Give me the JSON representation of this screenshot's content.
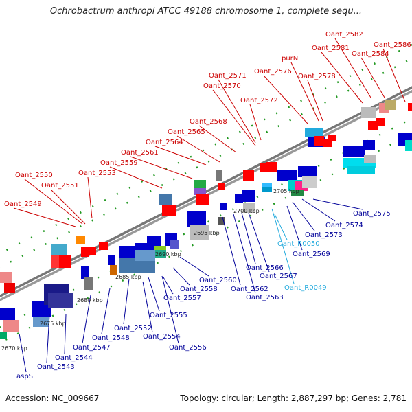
{
  "title": "Ochrobactrum anthropi ATCC 49188 chromosome 1, complete sequ...",
  "footer": {
    "accession": "Accession: NC_009667",
    "summary": "Topology: circular; Length: 2,887,297 bp; Genes: 2,781"
  },
  "colors": {
    "forward_label": "#cc0000",
    "reverse_label": "#000099",
    "rna_label": "#22aadd",
    "backbone": "#888888",
    "tick": "#228822"
  },
  "ticks": [
    {
      "label": "2670 kbp"
    },
    {
      "label": "2675 kbp"
    },
    {
      "label": "2680 kbp"
    },
    {
      "label": "2685 kbp"
    },
    {
      "label": "2690 kbp"
    },
    {
      "label": "2695 kbp"
    },
    {
      "label": "2700 kbp"
    },
    {
      "label": "2705 kbp"
    }
  ],
  "forward_genes": [
    {
      "name": "Oant_2549"
    },
    {
      "name": "Oant_2550"
    },
    {
      "name": "Oant_2551"
    },
    {
      "name": "Oant_2553"
    },
    {
      "name": "Oant_2559"
    },
    {
      "name": "Oant_2561"
    },
    {
      "name": "Oant_2564"
    },
    {
      "name": "Oant_2565"
    },
    {
      "name": "Oant_2568"
    },
    {
      "name": "Oant_2570"
    },
    {
      "name": "Oant_2571"
    },
    {
      "name": "Oant_2572"
    },
    {
      "name": "Oant_2576"
    },
    {
      "name": "purN"
    },
    {
      "name": "Oant_2578"
    },
    {
      "name": "Oant_2581"
    },
    {
      "name": "Oant_2582"
    },
    {
      "name": "Oant_2584"
    },
    {
      "name": "Oant_2586"
    }
  ],
  "reverse_genes": [
    {
      "name": "aspS"
    },
    {
      "name": "Oant_2543"
    },
    {
      "name": "Oant_2544"
    },
    {
      "name": "Oant_2547"
    },
    {
      "name": "Oant_2548"
    },
    {
      "name": "Oant_2552"
    },
    {
      "name": "Oant_2554"
    },
    {
      "name": "Oant_2555"
    },
    {
      "name": "Oant_2556"
    },
    {
      "name": "Oant_2557"
    },
    {
      "name": "Oant_2558"
    },
    {
      "name": "Oant_2560"
    },
    {
      "name": "Oant_2562"
    },
    {
      "name": "Oant_2563"
    },
    {
      "name": "Oant_2566"
    },
    {
      "name": "Oant_2567"
    },
    {
      "name": "Oant_R0049"
    },
    {
      "name": "Oant_R0050"
    },
    {
      "name": "Oant_2569"
    },
    {
      "name": "Oant_2573"
    },
    {
      "name": "Oant_2574"
    },
    {
      "name": "Oant_2575"
    }
  ]
}
